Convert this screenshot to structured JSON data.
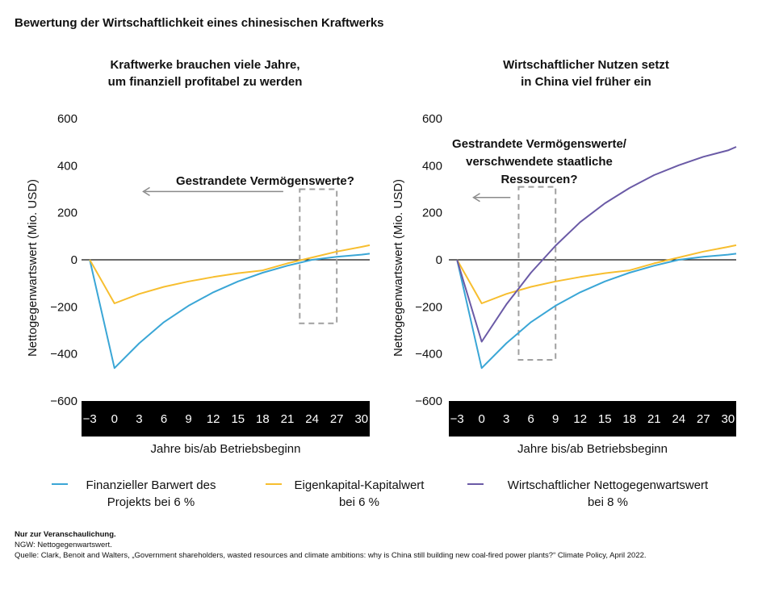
{
  "title": "Bewertung der Wirtschaftlichkeit eines chinesischen Kraftwerks",
  "colors": {
    "blue": "#3aa6d6",
    "yellow": "#f7be2f",
    "purple": "#6a5aa6",
    "axis_band": "#000000",
    "arrow": "#8a8a8a",
    "box": "#a0a0a0"
  },
  "legend": [
    {
      "label_line1": "Finanzieller Barwert des",
      "label_line2": "Projekts bei 6 %",
      "color": "#3aa6d6"
    },
    {
      "label_line1": "Eigenkapital-Kapitalwert",
      "label_line2": "bei 6 %",
      "color": "#f7be2f"
    },
    {
      "label_line1": "Wirtschaftlicher Nettogegenwartswert",
      "label_line2": "bei 8 %",
      "color": "#6a5aa6"
    }
  ],
  "notes": {
    "line1": "Nur zur Veranschaulichung.",
    "line2": "NGW: Nettogegenwartswert.",
    "line3": "Quelle: Clark, Benoit and Walters, „Government shareholders, wasted resources and climate ambitions: why is China still building new coal-fired power plants?“ Climate Policy, April 2022."
  },
  "chart_data": [
    {
      "type": "line",
      "title_line1": "Kraftwerke brauchen viele Jahre,",
      "title_line2": "um finanziell profitabel zu werden",
      "xlabel": "Jahre bis/ab Betriebsbeginn",
      "ylabel": "Nettogegenwartswert (Mio. USD)",
      "xlim": [
        -4,
        31
      ],
      "ylim": [
        -600,
        600
      ],
      "xticks": [
        -3,
        0,
        3,
        6,
        9,
        12,
        15,
        18,
        21,
        24,
        27,
        30
      ],
      "yticks": [
        600,
        400,
        200,
        0,
        -200,
        -400,
        -600
      ],
      "ytick_labels": [
        "600",
        "400",
        "200",
        "0",
        "−200",
        "−400",
        "−600"
      ],
      "annotation": "Gestrandete Vermögenswerte?",
      "dashed_box": {
        "x0": 22.5,
        "x1": 27,
        "y0": 300,
        "y1": -270
      },
      "arrow": {
        "x_from": 20.5,
        "x_to": 3.5,
        "y": 290
      },
      "series": [
        {
          "name": "Finanzieller Barwert des Projekts bei 6 %",
          "color": "#3aa6d6",
          "x": [
            -3,
            0,
            3,
            6,
            9,
            12,
            15,
            18,
            21,
            24,
            27,
            30,
            31
          ],
          "y": [
            0,
            -460,
            -355,
            -265,
            -195,
            -138,
            -92,
            -55,
            -25,
            0,
            13,
            22,
            26
          ]
        },
        {
          "name": "Eigenkapital-Kapitalwert bei 6 %",
          "color": "#f7be2f",
          "x": [
            -3,
            0,
            3,
            6,
            9,
            12,
            15,
            18,
            21,
            24,
            27,
            30,
            31
          ],
          "y": [
            0,
            -185,
            -145,
            -115,
            -92,
            -73,
            -57,
            -45,
            -15,
            10,
            35,
            55,
            62
          ]
        }
      ]
    },
    {
      "type": "line",
      "title_line1": "Wirtschaftlicher Nutzen setzt",
      "title_line2": "in China viel früher ein",
      "xlabel": "Jahre bis/ab Betriebsbeginn",
      "ylabel": "Nettogegenwartswert (Mio. USD)",
      "xlim": [
        -4,
        31
      ],
      "ylim": [
        -600,
        600
      ],
      "xticks": [
        -3,
        0,
        3,
        6,
        9,
        12,
        15,
        18,
        21,
        24,
        27,
        30
      ],
      "yticks": [
        600,
        400,
        200,
        0,
        -200,
        -400,
        -600
      ],
      "ytick_labels": [
        "600",
        "400",
        "200",
        "0",
        "−200",
        "−400",
        "−600"
      ],
      "annotation_lines": [
        "Gestrandete Vermögenswerte/",
        "verschwendete staatliche",
        "Ressourcen?"
      ],
      "dashed_box": {
        "x0": 4.5,
        "x1": 9,
        "y0": 310,
        "y1": -425
      },
      "arrow": {
        "x_from": 3.5,
        "x_to": -1,
        "y": 265
      },
      "series": [
        {
          "name": "Finanzieller Barwert des Projekts bei 6 %",
          "color": "#3aa6d6",
          "x": [
            -3,
            0,
            3,
            6,
            9,
            12,
            15,
            18,
            21,
            24,
            27,
            30,
            31
          ],
          "y": [
            0,
            -460,
            -355,
            -265,
            -195,
            -138,
            -92,
            -55,
            -25,
            0,
            13,
            22,
            26
          ]
        },
        {
          "name": "Eigenkapital-Kapitalwert bei 6 %",
          "color": "#f7be2f",
          "x": [
            -3,
            0,
            3,
            6,
            9,
            12,
            15,
            18,
            21,
            24,
            27,
            30,
            31
          ],
          "y": [
            0,
            -185,
            -145,
            -115,
            -92,
            -73,
            -57,
            -45,
            -15,
            10,
            35,
            55,
            62
          ]
        },
        {
          "name": "Wirtschaftlicher Nettogegenwartswert bei 8 %",
          "color": "#6a5aa6",
          "x": [
            -3,
            0,
            3,
            6,
            9,
            12,
            15,
            18,
            21,
            24,
            27,
            30,
            31
          ],
          "y": [
            0,
            -348,
            -190,
            -55,
            60,
            160,
            240,
            305,
            360,
            402,
            438,
            465,
            480
          ]
        }
      ]
    }
  ]
}
